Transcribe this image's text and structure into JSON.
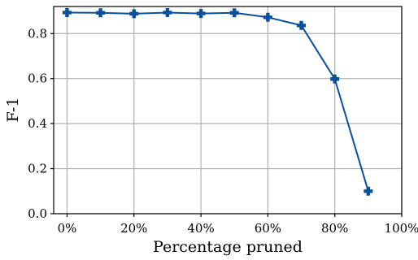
{
  "chart_data": {
    "type": "line",
    "xlabel": "Percentage pruned",
    "ylabel": "F-1",
    "xlim": [
      -4,
      100
    ],
    "ylim": [
      0,
      0.92
    ],
    "x_ticks": [
      0,
      20,
      40,
      60,
      80,
      100
    ],
    "x_tick_labels": [
      "0%",
      "20%",
      "40%",
      "60%",
      "80%",
      "100%"
    ],
    "y_ticks": [
      0,
      0.2,
      0.4,
      0.6,
      0.8
    ],
    "y_tick_labels": [
      "0.0",
      "0.2",
      "0.4",
      "0.6",
      "0.8"
    ],
    "grid": true,
    "series": [
      {
        "marker": "plus-filled",
        "color": "#0b4f9c",
        "x": [
          0,
          10,
          20,
          30,
          40,
          50,
          60,
          70,
          80,
          90
        ],
        "y": [
          0.893,
          0.892,
          0.888,
          0.893,
          0.889,
          0.892,
          0.872,
          0.836,
          0.598,
          0.1
        ]
      }
    ]
  }
}
